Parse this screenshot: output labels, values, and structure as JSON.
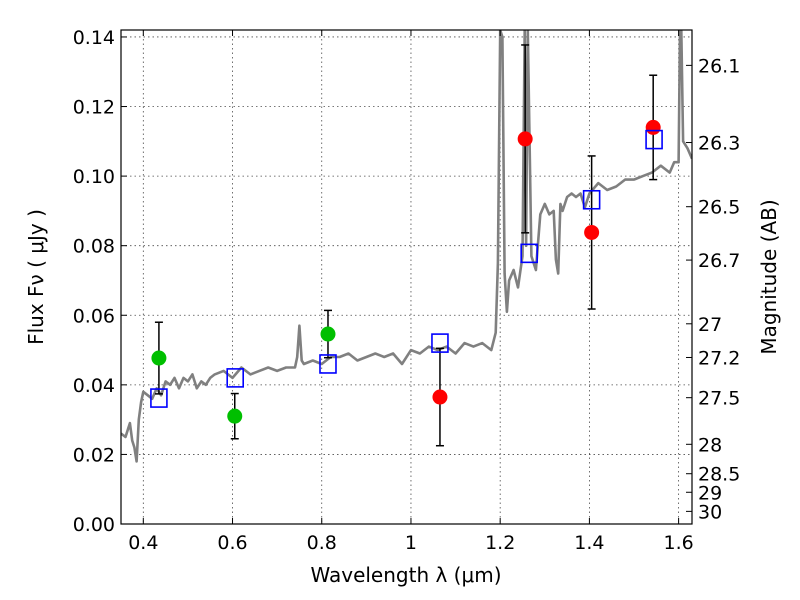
{
  "chart_data": {
    "type": "scatter",
    "title": "",
    "xlabel": "Wavelength  λ (μm)",
    "ylabel": "Flux  Fν  ( μJy )",
    "y2label": "Magnitude (AB)",
    "xlim": [
      0.35,
      1.63
    ],
    "ylim": [
      0.0,
      0.142
    ],
    "grid": true,
    "x_ticks": [
      {
        "value": 0.4,
        "label": "0.4"
      },
      {
        "value": 0.6,
        "label": "0.6"
      },
      {
        "value": 0.8,
        "label": "0.8"
      },
      {
        "value": 1.0,
        "label": "1"
      },
      {
        "value": 1.2,
        "label": "1.2"
      },
      {
        "value": 1.4,
        "label": "1.4"
      },
      {
        "value": 1.6,
        "label": "1.6"
      }
    ],
    "y_ticks": [
      {
        "value": 0.0,
        "label": "0.00"
      },
      {
        "value": 0.02,
        "label": "0.02"
      },
      {
        "value": 0.04,
        "label": "0.04"
      },
      {
        "value": 0.06,
        "label": "0.06"
      },
      {
        "value": 0.08,
        "label": "0.08"
      },
      {
        "value": 0.1,
        "label": "0.10"
      },
      {
        "value": 0.12,
        "label": "0.12"
      },
      {
        "value": 0.14,
        "label": "0.14"
      }
    ],
    "y2_ticks": [
      {
        "value": 26.1,
        "label": "26.1"
      },
      {
        "value": 26.3,
        "label": "26.3"
      },
      {
        "value": 26.5,
        "label": "26.5"
      },
      {
        "value": 26.7,
        "label": "26.7"
      },
      {
        "value": 27.0,
        "label": "27"
      },
      {
        "value": 27.2,
        "label": "27.2"
      },
      {
        "value": 27.5,
        "label": "27.5"
      },
      {
        "value": 28.0,
        "label": "28"
      },
      {
        "value": 28.5,
        "label": "28.5"
      },
      {
        "value": 29.0,
        "label": "29"
      },
      {
        "value": 30.0,
        "label": "30"
      }
    ],
    "series": [
      {
        "kind": "line",
        "color": "#808080",
        "x": [
          0.35,
          0.36,
          0.37,
          0.375,
          0.38,
          0.385,
          0.39,
          0.395,
          0.4,
          0.41,
          0.42,
          0.43,
          0.44,
          0.45,
          0.46,
          0.47,
          0.48,
          0.49,
          0.5,
          0.51,
          0.52,
          0.53,
          0.54,
          0.55,
          0.56,
          0.58,
          0.6,
          0.62,
          0.64,
          0.66,
          0.68,
          0.7,
          0.72,
          0.74,
          0.745,
          0.75,
          0.755,
          0.76,
          0.78,
          0.8,
          0.82,
          0.84,
          0.86,
          0.88,
          0.9,
          0.92,
          0.94,
          0.96,
          0.98,
          1.0,
          1.02,
          1.04,
          1.06,
          1.08,
          1.1,
          1.12,
          1.14,
          1.16,
          1.18,
          1.19,
          1.195,
          1.2,
          1.205,
          1.21,
          1.215,
          1.22,
          1.23,
          1.24,
          1.25,
          1.255,
          1.258,
          1.262,
          1.27,
          1.28,
          1.29,
          1.3,
          1.31,
          1.32,
          1.325,
          1.33,
          1.335,
          1.34,
          1.35,
          1.36,
          1.37,
          1.38,
          1.39,
          1.4,
          1.42,
          1.44,
          1.46,
          1.48,
          1.5,
          1.52,
          1.54,
          1.56,
          1.58,
          1.59,
          1.6,
          1.603,
          1.606,
          1.61,
          1.62,
          1.63
        ],
        "y": [
          0.026,
          0.025,
          0.029,
          0.024,
          0.022,
          0.018,
          0.03,
          0.035,
          0.038,
          0.037,
          0.036,
          0.039,
          0.037,
          0.041,
          0.04,
          0.042,
          0.039,
          0.042,
          0.041,
          0.043,
          0.039,
          0.041,
          0.04,
          0.042,
          0.043,
          0.044,
          0.042,
          0.045,
          0.043,
          0.044,
          0.045,
          0.044,
          0.045,
          0.045,
          0.048,
          0.057,
          0.047,
          0.046,
          0.047,
          0.046,
          0.048,
          0.048,
          0.049,
          0.047,
          0.048,
          0.049,
          0.048,
          0.049,
          0.046,
          0.05,
          0.049,
          0.051,
          0.05,
          0.051,
          0.049,
          0.052,
          0.051,
          0.052,
          0.05,
          0.055,
          0.075,
          0.142,
          0.14,
          0.072,
          0.061,
          0.07,
          0.073,
          0.068,
          0.077,
          0.142,
          0.08,
          0.142,
          0.077,
          0.073,
          0.089,
          0.092,
          0.089,
          0.09,
          0.076,
          0.072,
          0.092,
          0.09,
          0.094,
          0.095,
          0.094,
          0.095,
          0.091,
          0.095,
          0.098,
          0.096,
          0.097,
          0.099,
          0.099,
          0.1,
          0.101,
          0.103,
          0.101,
          0.104,
          0.104,
          0.142,
          0.142,
          0.11,
          0.108,
          0.105
        ]
      },
      {
        "kind": "points",
        "marker": "circle",
        "color": "#00bf00",
        "points": [
          {
            "x": 0.435,
            "y": 0.0477,
            "yerr": 0.0103
          },
          {
            "x": 0.605,
            "y": 0.031,
            "yerr": 0.0065
          },
          {
            "x": 0.814,
            "y": 0.0546,
            "yerr": 0.0068
          }
        ]
      },
      {
        "kind": "points",
        "marker": "circle",
        "color": "#ff0000",
        "points": [
          {
            "x": 1.065,
            "y": 0.0365,
            "yerr": 0.014
          },
          {
            "x": 1.256,
            "y": 0.1107,
            "yerr": 0.027
          },
          {
            "x": 1.405,
            "y": 0.0838,
            "yerr": 0.022
          },
          {
            "x": 1.543,
            "y": 0.114,
            "yerr": 0.015
          }
        ]
      },
      {
        "kind": "points",
        "marker": "square",
        "color": "#0000ff",
        "points": [
          {
            "x": 0.435,
            "y": 0.0362
          },
          {
            "x": 0.606,
            "y": 0.042
          },
          {
            "x": 0.814,
            "y": 0.046
          },
          {
            "x": 1.065,
            "y": 0.052
          },
          {
            "x": 1.265,
            "y": 0.0778
          },
          {
            "x": 1.405,
            "y": 0.0932
          },
          {
            "x": 1.545,
            "y": 0.1105
          }
        ]
      }
    ]
  }
}
